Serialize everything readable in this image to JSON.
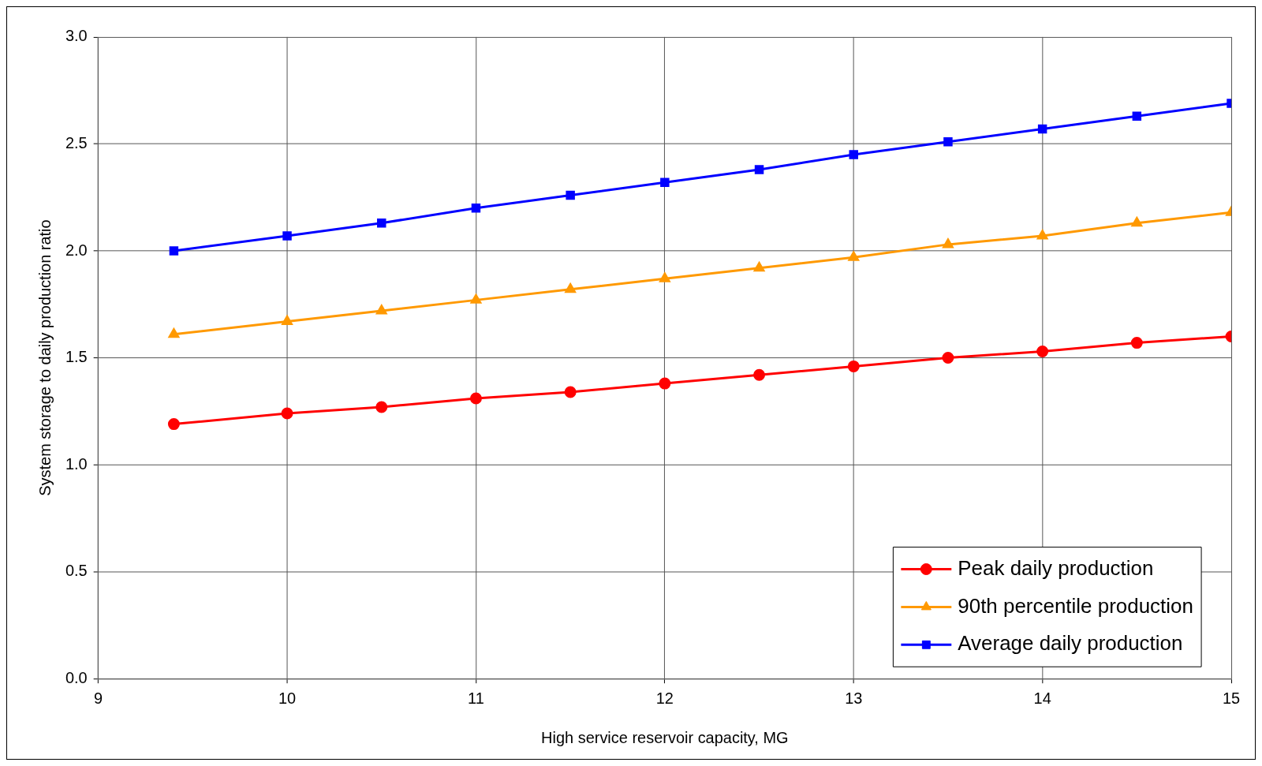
{
  "chart_data": {
    "type": "line",
    "xlabel": "High service reservoir capacity, MG",
    "ylabel": "System storage to daily production ratio",
    "x": [
      9.4,
      10,
      10.5,
      11,
      11.5,
      12,
      12.5,
      13,
      13.5,
      14,
      14.5,
      15
    ],
    "series": [
      {
        "name": "Peak daily production",
        "color": "#ff0000",
        "marker": "circle",
        "values": [
          1.19,
          1.24,
          1.27,
          1.31,
          1.34,
          1.38,
          1.42,
          1.46,
          1.5,
          1.53,
          1.57,
          1.6
        ]
      },
      {
        "name": "90th percentile production",
        "color": "#ff9900",
        "marker": "triangle",
        "values": [
          1.61,
          1.67,
          1.72,
          1.77,
          1.82,
          1.87,
          1.92,
          1.97,
          2.03,
          2.07,
          2.13,
          2.18
        ]
      },
      {
        "name": "Average daily production",
        "color": "#0000ff",
        "marker": "square",
        "values": [
          2.0,
          2.07,
          2.13,
          2.2,
          2.26,
          2.32,
          2.38,
          2.45,
          2.51,
          2.57,
          2.63,
          2.69
        ]
      }
    ],
    "xlim": [
      9,
      15
    ],
    "xticks": [
      9,
      10,
      11,
      12,
      13,
      14,
      15
    ],
    "ylim": [
      0,
      3
    ],
    "yticks": [
      {
        "value": 0,
        "label": "0.0"
      },
      {
        "value": 0.5,
        "label": "0.5"
      },
      {
        "value": 1,
        "label": "1.0"
      },
      {
        "value": 1.5,
        "label": "1.5"
      },
      {
        "value": 2,
        "label": "2.0"
      },
      {
        "value": 2.5,
        "label": "2.5"
      },
      {
        "value": 3,
        "label": "3.0"
      }
    ],
    "grid": true,
    "legend": "bottom right",
    "line_style": "solid"
  }
}
